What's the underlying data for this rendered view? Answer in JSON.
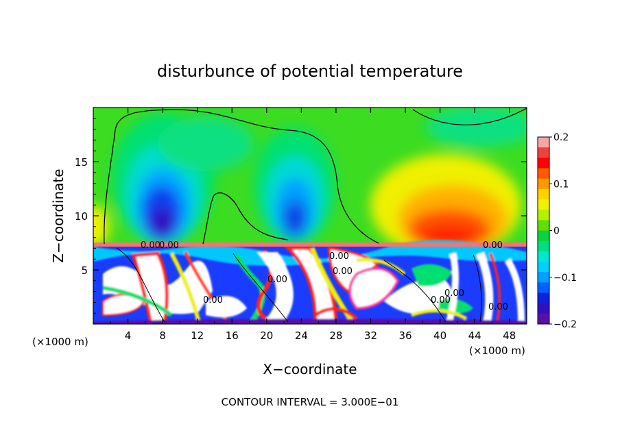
{
  "chart_data": {
    "type": "heatmap",
    "title": "disturbunce of potential temperature",
    "xlabel": "X−coordinate",
    "ylabel": "Z−coordinate",
    "x_unit_left": "(×1000 m)",
    "x_unit_right": "(×1000 m)",
    "xlim": [
      0,
      50
    ],
    "ylim": [
      0,
      20
    ],
    "x_ticks": [
      "4",
      "8",
      "12",
      "16",
      "20",
      "24",
      "28",
      "32",
      "36",
      "40",
      "44",
      "48"
    ],
    "y_ticks": [
      "5",
      "10",
      "15"
    ],
    "colorbar": {
      "range": [
        -0.2,
        0.2
      ],
      "ticks": [
        "0.2",
        "0.1",
        "0",
        "−0.1",
        "−0.2"
      ],
      "colors": [
        "#f7a6a6",
        "#f04040",
        "#ff0000",
        "#ff5a00",
        "#ff9a00",
        "#ffd200",
        "#f0f000",
        "#b4f000",
        "#60e000",
        "#10d040",
        "#00e080",
        "#00e8d0",
        "#00d0ff",
        "#00a0ff",
        "#0060ff",
        "#1020e0",
        "#3010c0",
        "#5a10a8"
      ]
    },
    "contour_labels": [
      "0.00",
      "0.00",
      "0.00",
      "0.00",
      "0.00",
      "0.00",
      "0.00",
      "0.00",
      "0.00",
      "0.00",
      "0.00",
      "0.00"
    ],
    "footer": "CONTOUR INTERVAL = 3.000E−01"
  }
}
